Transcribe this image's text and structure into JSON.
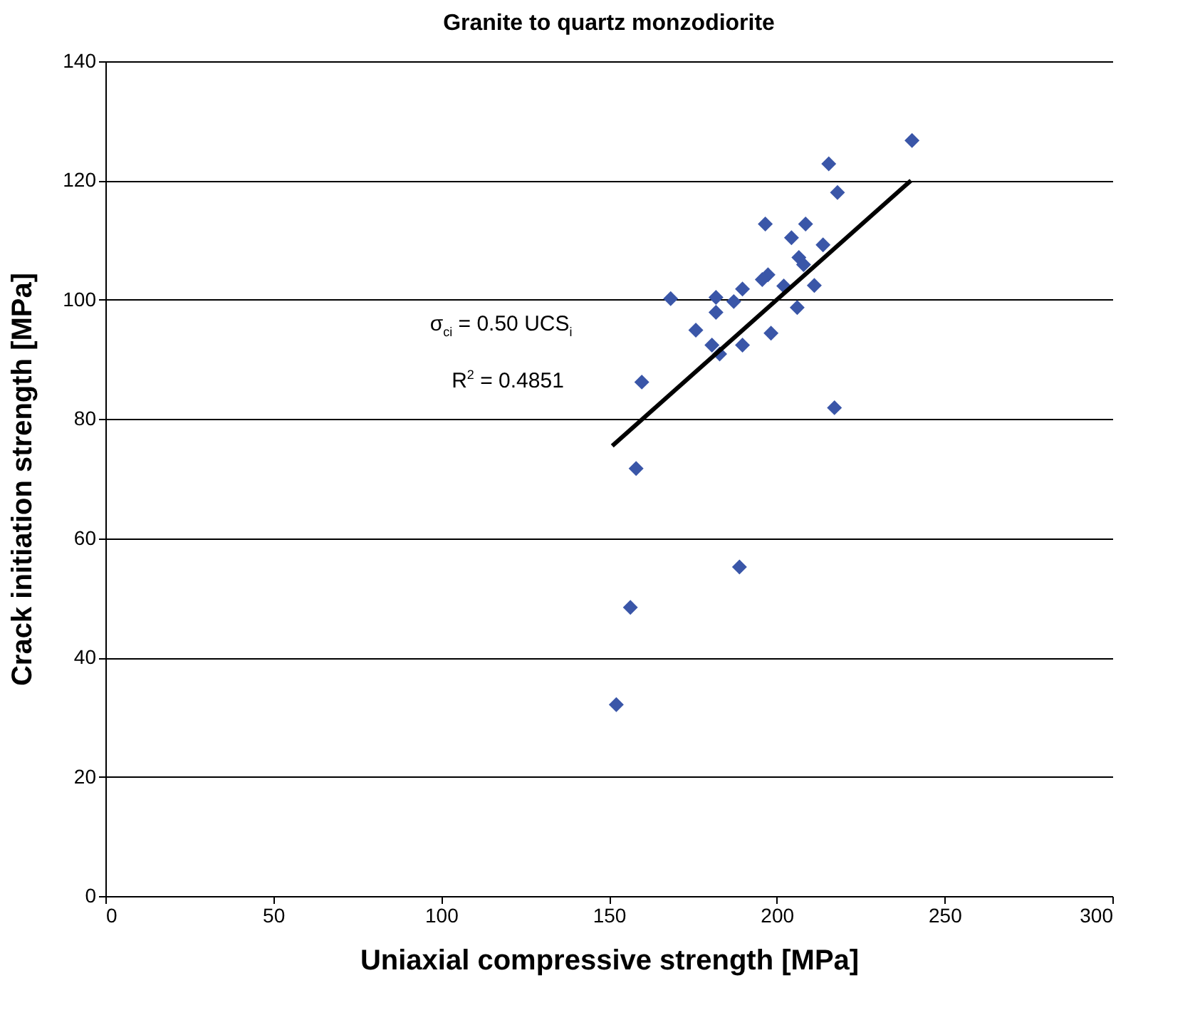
{
  "chart_data": {
    "type": "scatter",
    "title": "Granite to quartz monzodiorite",
    "xlabel": "Uniaxial compressive strength [MPa]",
    "ylabel": "Crack initiation strength [MPa]",
    "x": [
      240.3,
      215.5,
      218.1,
      196.6,
      208.6,
      204.4,
      213.8,
      206.6,
      208.0,
      197.4,
      195.7,
      211.2,
      202.1,
      189.8,
      187.2,
      168.4,
      181.9,
      181.9,
      206.1,
      175.9,
      198.3,
      180.7,
      189.8,
      183.0,
      159.8,
      217.2,
      158.1,
      188.9,
      156.4,
      152.2
    ],
    "series": [
      {
        "color": "#3a56a8",
        "values": [
          126.7,
          122.8,
          118.0,
          112.7,
          112.7,
          110.4,
          109.2,
          107.1,
          105.9,
          104.2,
          103.4,
          102.4,
          102.3,
          101.8,
          99.7,
          100.2,
          100.4,
          97.9,
          98.7,
          94.9,
          94.4,
          92.4,
          92.4,
          90.9,
          86.2,
          81.9,
          71.7,
          55.2,
          48.4,
          32.1
        ]
      },
      {
        "type": "line",
        "marker": "none",
        "line_style": "solid",
        "color": "#000000",
        "x": [
          151,
          240
        ],
        "values": [
          75.5,
          120
        ]
      }
    ],
    "marker": "diamond",
    "grid": "y",
    "xlim": [
      0,
      300
    ],
    "xticks": [
      0,
      50,
      100,
      150,
      200,
      250,
      300
    ],
    "ylim": [
      0,
      140
    ],
    "yticks": [
      0,
      20,
      40,
      60,
      80,
      100,
      120,
      140
    ],
    "annotations": [
      "σ$_{ci}$ = 0.50 UCS$_{i}$",
      "R$^{2}$ = 0.4851"
    ]
  }
}
